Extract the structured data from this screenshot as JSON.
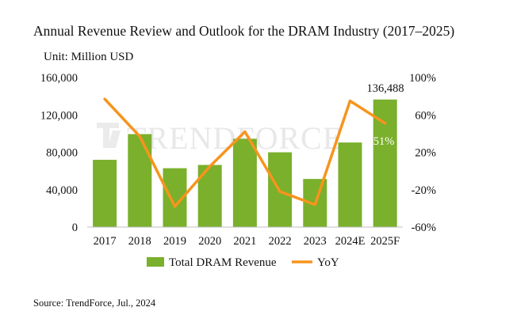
{
  "title": "Annual Revenue Review and Outlook for the DRAM Industry (2017–2025)",
  "unit": "Unit: Million USD",
  "source": "Source: TrendForce, Jul., 2024",
  "watermark": "TRENDFORCE",
  "colors": {
    "bar": "#7ab02c",
    "line": "#f7941d",
    "watermark": "#e8e8e8"
  },
  "chart_data": {
    "type": "bar",
    "categories": [
      "2017",
      "2018",
      "2019",
      "2020",
      "2021",
      "2022",
      "2023",
      "2024E",
      "2025F"
    ],
    "series": [
      {
        "name": "Total DRAM Revenue",
        "type": "bar",
        "axis": "left",
        "values": [
          72000,
          99500,
          63000,
          66500,
          94500,
          80000,
          51500,
          90500,
          136488
        ]
      },
      {
        "name": "YoY",
        "type": "line",
        "axis": "right",
        "values": [
          77,
          37,
          -38,
          5,
          42,
          -22,
          -36,
          75,
          51
        ]
      }
    ],
    "y_left": {
      "min": 0,
      "max": 160000,
      "ticks": [
        "0",
        "40,000",
        "80,000",
        "120,000",
        "160,000"
      ]
    },
    "y_right": {
      "min": -60,
      "max": 100,
      "ticks": [
        "-60%",
        "-20%",
        "20%",
        "60%",
        "100%"
      ]
    },
    "annotations": [
      {
        "text": "136,488",
        "category": "2025F"
      },
      {
        "text": "51%",
        "category": "2025F"
      }
    ],
    "legend": {
      "position": "bottom",
      "entries": [
        "Total DRAM Revenue",
        "YoY"
      ]
    }
  }
}
